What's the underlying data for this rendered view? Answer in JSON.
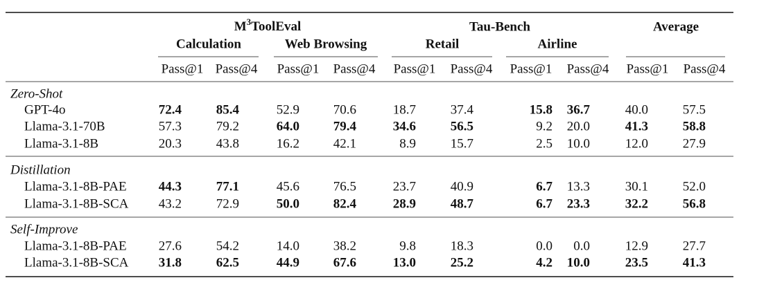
{
  "table": {
    "groups": [
      {
        "text": "M",
        "sup": "3",
        "tail": "ToolEval"
      },
      {
        "text": "Tau-Bench"
      },
      {
        "text": "Average"
      }
    ],
    "subgroups": [
      "Calculation",
      "Web Browsing",
      "Retail",
      "Airline"
    ],
    "metrics": [
      "Pass@1",
      "Pass@4",
      "Pass@1",
      "Pass@4",
      "Pass@1",
      "Pass@4",
      "Pass@1",
      "Pass@4",
      "Pass@1",
      "Pass@4"
    ],
    "sections": [
      {
        "title": "Zero-Shot",
        "rows": [
          {
            "model": "GPT-4o",
            "cells": [
              "72.4",
              "85.4",
              "52.9",
              "70.6",
              "18.7",
              "37.4",
              "15.8",
              "36.7",
              "40.0",
              "57.5"
            ],
            "bold": [
              true,
              true,
              false,
              false,
              false,
              false,
              true,
              true,
              false,
              false
            ]
          },
          {
            "model": "Llama-3.1-70B",
            "cells": [
              "57.3",
              "79.2",
              "64.0",
              "79.4",
              "34.6",
              "56.5",
              "9.2",
              "20.0",
              "41.3",
              "58.8"
            ],
            "bold": [
              false,
              false,
              true,
              true,
              true,
              true,
              false,
              false,
              true,
              true
            ]
          },
          {
            "model": "Llama-3.1-8B",
            "cells": [
              "20.3",
              "43.8",
              "16.2",
              "42.1",
              "8.9",
              "15.7",
              "2.5",
              "10.0",
              "12.0",
              "27.9"
            ],
            "bold": [
              false,
              false,
              false,
              false,
              false,
              false,
              false,
              false,
              false,
              false
            ]
          }
        ]
      },
      {
        "title": "Distillation",
        "rows": [
          {
            "model": "Llama-3.1-8B-PAE",
            "cells": [
              "44.3",
              "77.1",
              "45.6",
              "76.5",
              "23.7",
              "40.9",
              "6.7",
              "13.3",
              "30.1",
              "52.0"
            ],
            "bold": [
              true,
              true,
              false,
              false,
              false,
              false,
              true,
              false,
              false,
              false
            ]
          },
          {
            "model": "Llama-3.1-8B-SCA",
            "cells": [
              "43.2",
              "72.9",
              "50.0",
              "82.4",
              "28.9",
              "48.7",
              "6.7",
              "23.3",
              "32.2",
              "56.8"
            ],
            "bold": [
              false,
              false,
              true,
              true,
              true,
              true,
              true,
              true,
              true,
              true
            ]
          }
        ]
      },
      {
        "title": "Self-Improve",
        "rows": [
          {
            "model": "Llama-3.1-8B-PAE",
            "cells": [
              "27.6",
              "54.2",
              "14.0",
              "38.2",
              "9.8",
              "18.3",
              "0.0",
              "0.0",
              "12.9",
              "27.7"
            ],
            "bold": [
              false,
              false,
              false,
              false,
              false,
              false,
              false,
              false,
              false,
              false
            ]
          },
          {
            "model": "Llama-3.1-8B-SCA",
            "cells": [
              "31.8",
              "62.5",
              "44.9",
              "67.6",
              "13.0",
              "25.2",
              "4.2",
              "10.0",
              "23.5",
              "41.3"
            ],
            "bold": [
              true,
              true,
              true,
              true,
              true,
              true,
              true,
              true,
              true,
              true
            ]
          }
        ]
      }
    ]
  }
}
